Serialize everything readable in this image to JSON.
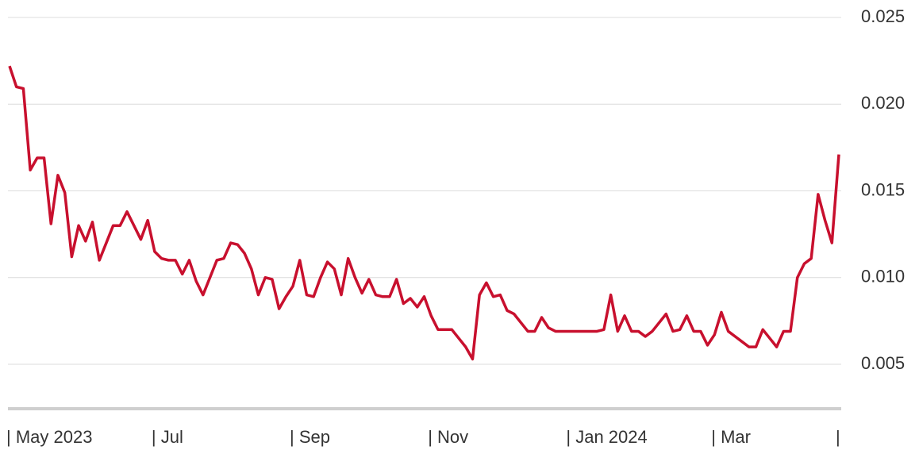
{
  "chart_data": {
    "type": "line",
    "categories": [
      "| May 2023",
      null,
      null,
      null,
      null,
      null,
      null,
      null,
      null,
      null,
      null,
      null,
      null,
      null,
      null,
      null,
      null,
      null,
      null,
      null,
      null,
      "| Jul",
      null,
      null,
      null,
      null,
      null,
      null,
      null,
      null,
      null,
      null,
      null,
      null,
      null,
      null,
      null,
      null,
      null,
      null,
      null,
      "| Sep",
      null,
      null,
      null,
      null,
      null,
      null,
      null,
      null,
      null,
      null,
      null,
      null,
      null,
      null,
      null,
      null,
      null,
      null,
      null,
      "| Nov",
      null,
      null,
      null,
      null,
      null,
      null,
      null,
      null,
      null,
      null,
      null,
      null,
      null,
      null,
      null,
      null,
      null,
      null,
      null,
      "| Jan 2024",
      null,
      null,
      null,
      null,
      null,
      null,
      null,
      null,
      null,
      null,
      null,
      null,
      null,
      null,
      null,
      null,
      null,
      null,
      null,
      null,
      "| Mar",
      null,
      null,
      null,
      null,
      null,
      null,
      null,
      null,
      null,
      null,
      null,
      null,
      null,
      null,
      null,
      null,
      null,
      "|"
    ],
    "values": [
      0.0222,
      0.021,
      0.0209,
      0.0162,
      0.0169,
      0.0169,
      0.0131,
      0.0159,
      0.0149,
      0.0112,
      0.013,
      0.0121,
      0.0132,
      0.011,
      0.012,
      0.013,
      0.013,
      0.0138,
      0.013,
      0.0122,
      0.0133,
      0.0115,
      0.0111,
      0.011,
      0.011,
      0.0102,
      0.011,
      0.0098,
      0.009,
      0.01,
      0.011,
      0.0111,
      0.012,
      0.0119,
      0.0114,
      0.0105,
      0.009,
      0.01,
      0.0099,
      0.0082,
      0.0089,
      0.0095,
      0.011,
      0.009,
      0.0089,
      0.01,
      0.0109,
      0.0105,
      0.009,
      0.0111,
      0.01,
      0.0091,
      0.0099,
      0.009,
      0.0089,
      0.0089,
      0.0099,
      0.0085,
      0.0088,
      0.0083,
      0.0089,
      0.0078,
      0.007,
      0.007,
      0.007,
      0.0065,
      0.006,
      0.0053,
      0.009,
      0.0097,
      0.0089,
      0.009,
      0.0081,
      0.0079,
      0.0074,
      0.0069,
      0.0069,
      0.0077,
      0.0071,
      0.0069,
      0.0069,
      0.0069,
      0.0069,
      0.0069,
      0.0069,
      0.0069,
      0.007,
      0.009,
      0.0069,
      0.0078,
      0.0069,
      0.0069,
      0.0066,
      0.0069,
      0.0074,
      0.0079,
      0.0069,
      0.007,
      0.0078,
      0.0069,
      0.0069,
      0.0061,
      0.0067,
      0.008,
      0.0069,
      0.0066,
      0.0063,
      0.006,
      0.006,
      0.007,
      0.0065,
      0.006,
      0.0069,
      0.0069,
      0.01,
      0.0108,
      0.0111,
      0.0148,
      0.0133,
      0.012,
      0.0171
    ],
    "color": "#c8102e",
    "ylim": [
      0.0025,
      0.025
    ],
    "yticks": [
      0.005,
      {
        "value": 0.01,
        "label": "0.010"
      },
      0.015,
      {
        "value": 0.02,
        "label": "0.020"
      },
      0.025
    ],
    "grid": true
  }
}
